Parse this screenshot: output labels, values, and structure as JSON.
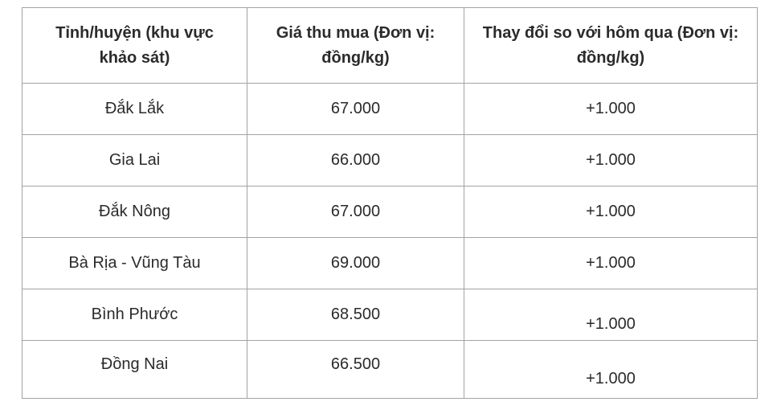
{
  "page": {
    "background": "#ffffff"
  },
  "table": {
    "border_color": "#a3a3a3",
    "text_color": "#2b2b2b",
    "header": {
      "region": "Tỉnh/huyện (khu vực khảo sát)",
      "price": "Giá thu mua (Đơn vị: đồng/kg)",
      "change": "Thay đổi so với hôm qua (Đơn vị: đồng/kg)"
    },
    "rows": [
      {
        "region": "Đắk Lắk",
        "price": "67.000",
        "change": "+1.000"
      },
      {
        "region": "Gia Lai",
        "price": "66.000",
        "change": "+1.000"
      },
      {
        "region": "Đắk Nông",
        "price": "67.000",
        "change": "+1.000"
      },
      {
        "region": "Bà Rịa - Vũng Tàu",
        "price": "69.000",
        "change": "+1.000"
      },
      {
        "region": "Bình Phước",
        "price": "68.500",
        "change": "+1.000"
      },
      {
        "region": "Đồng Nai",
        "price": "66.500",
        "change": "+1.000"
      }
    ]
  },
  "chart_data": {
    "type": "table",
    "columns": [
      "Tỉnh/huyện (khu vực khảo sát)",
      "Giá thu mua (Đơn vị: đồng/kg)",
      "Thay đổi so với hôm qua (Đơn vị: đồng/kg)"
    ],
    "rows": [
      [
        "Đắk Lắk",
        "67.000",
        "+1.000"
      ],
      [
        "Gia Lai",
        "66.000",
        "+1.000"
      ],
      [
        "Đắk Nông",
        "67.000",
        "+1.000"
      ],
      [
        "Bà Rịa - Vũng Tàu",
        "69.000",
        "+1.000"
      ],
      [
        "Bình Phước",
        "68.500",
        "+1.000"
      ],
      [
        "Đồng Nai",
        "66.500",
        "+1.000"
      ]
    ],
    "numeric": {
      "unit": "đồng/kg",
      "prices": [
        67000,
        66000,
        67000,
        69000,
        68500,
        66500
      ],
      "changes": [
        1000,
        1000,
        1000,
        1000,
        1000,
        1000
      ]
    }
  }
}
